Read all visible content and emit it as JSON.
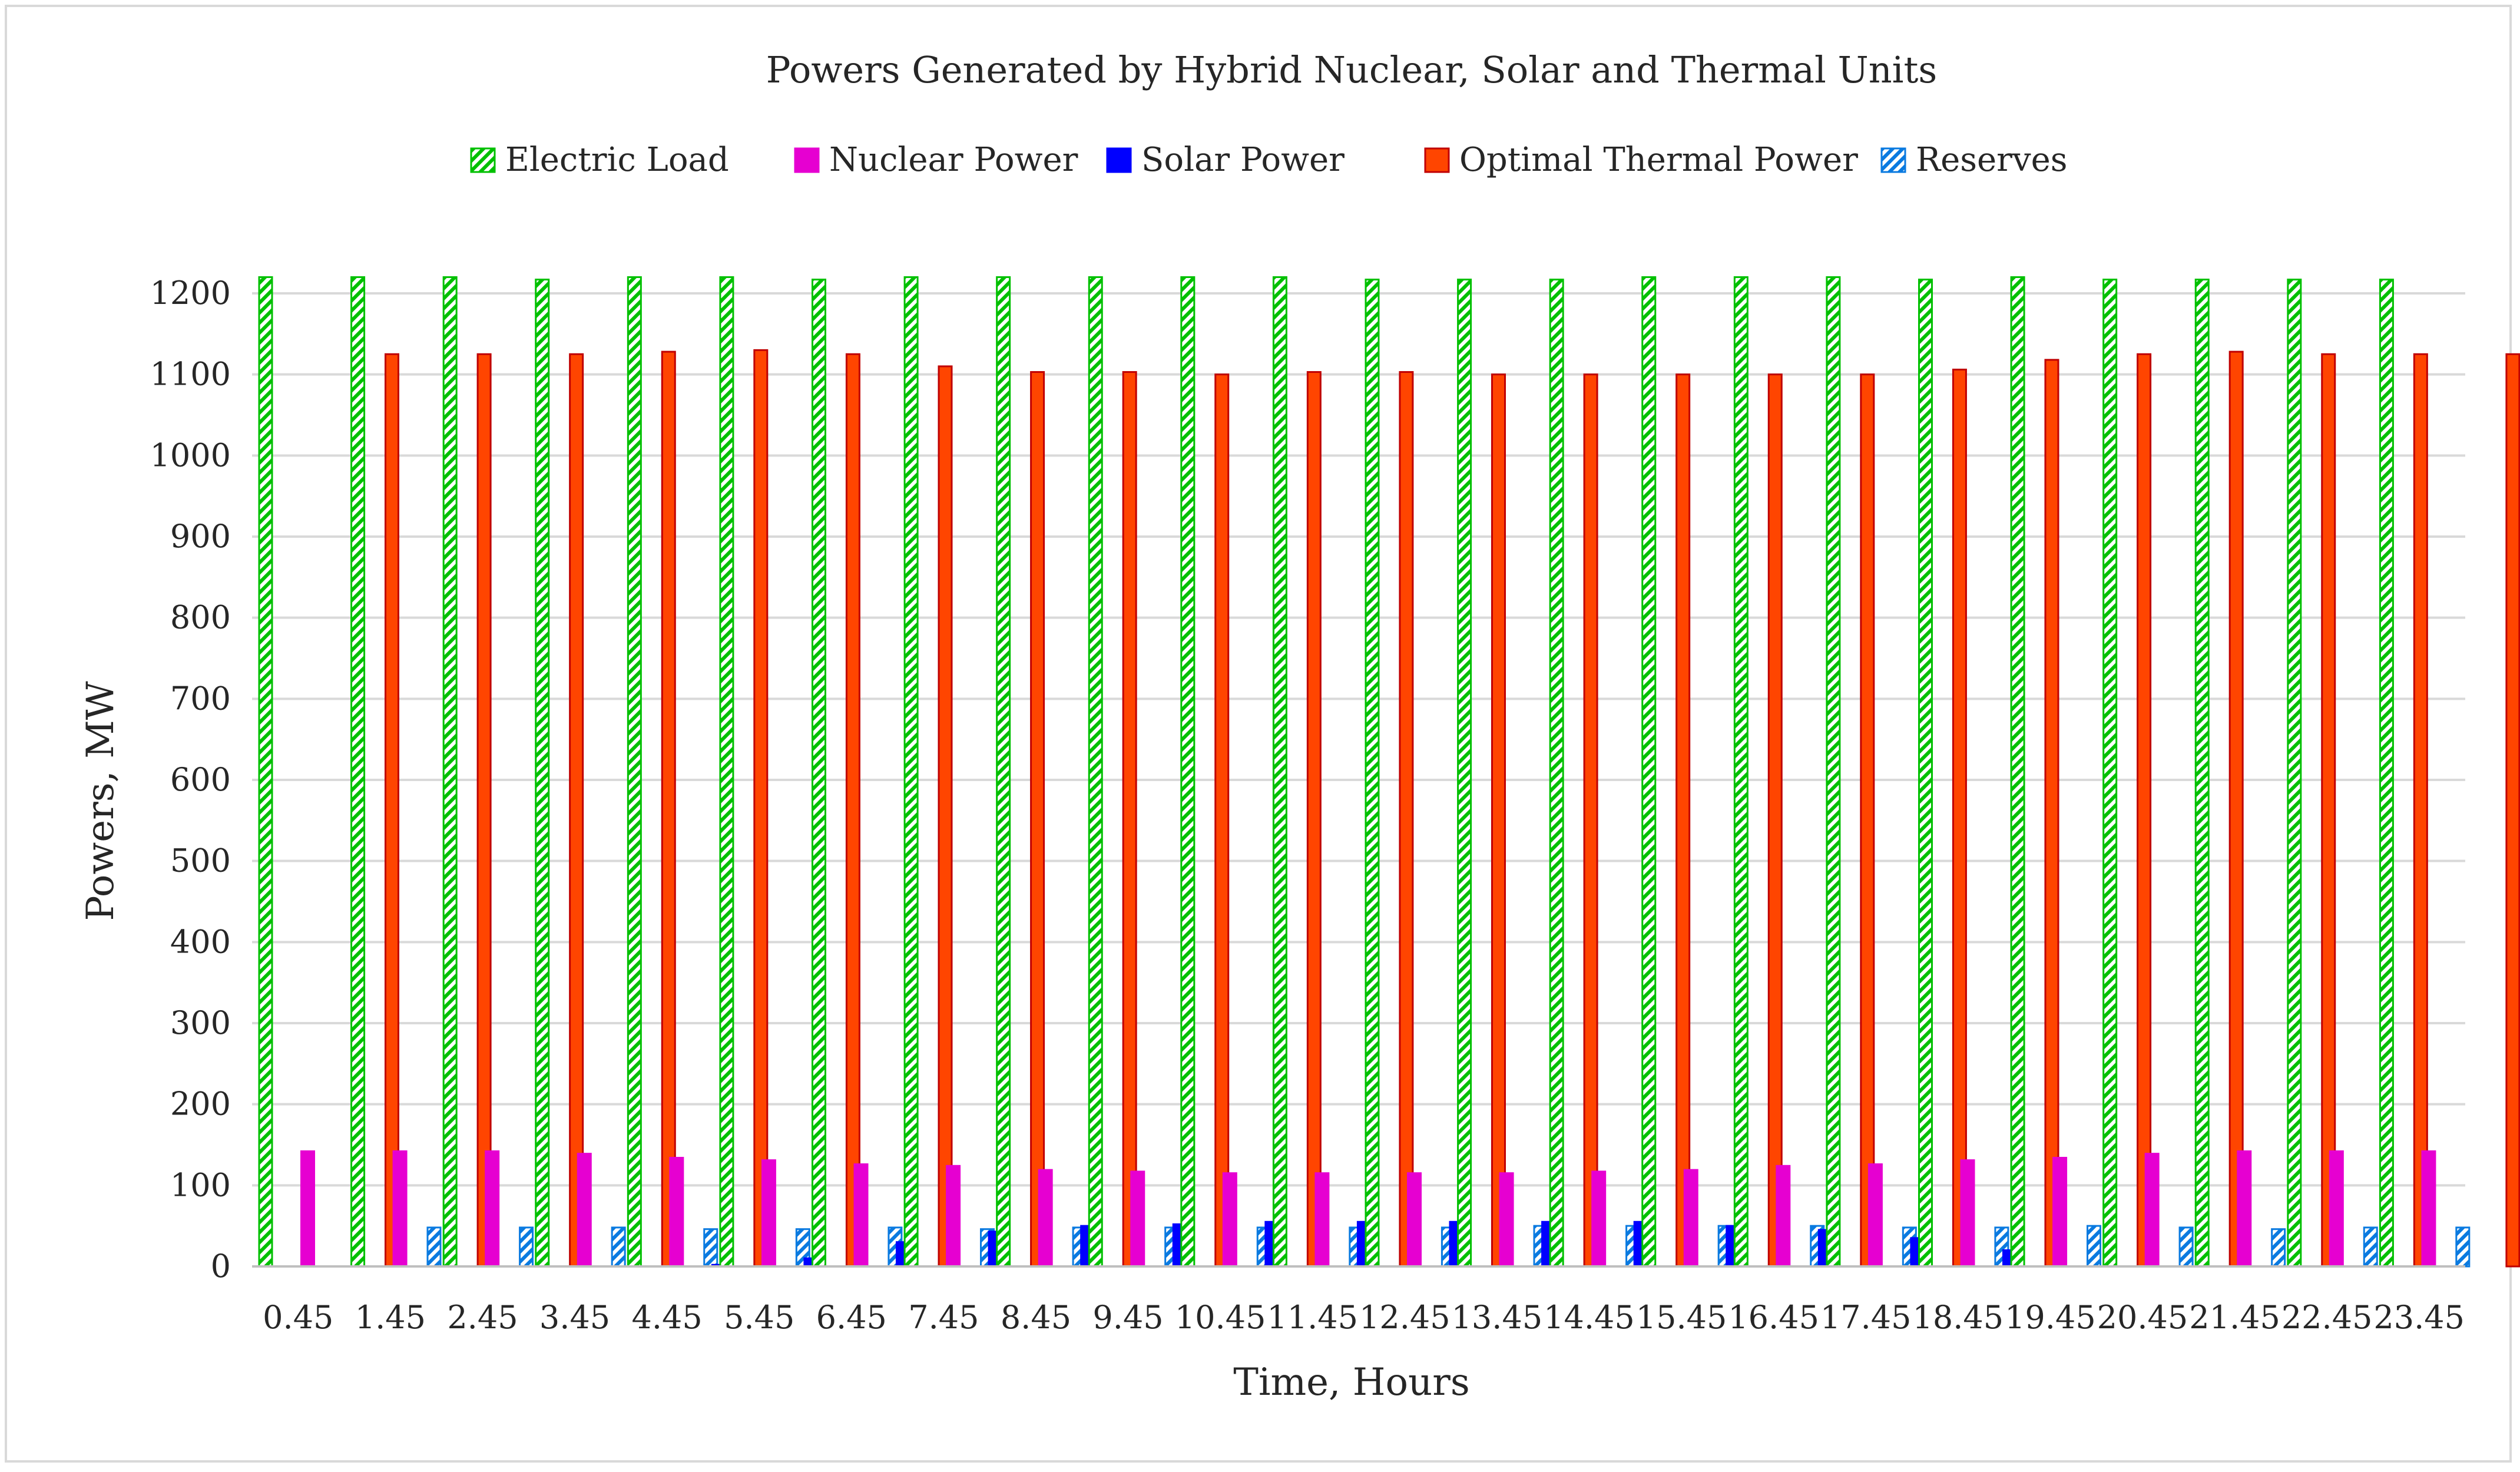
{
  "chart_data": {
    "type": "bar",
    "title": "Powers Generated by Hybrid Nuclear, Solar and Thermal Units",
    "xlabel": "Time, Hours",
    "ylabel": "Powers, MW",
    "ylim": [
      0,
      1200
    ],
    "yticks": [
      0,
      100,
      200,
      300,
      400,
      500,
      600,
      700,
      800,
      900,
      1000,
      1100,
      1200
    ],
    "grid": true,
    "legend_position": "top",
    "categories": [
      "0.45",
      "1.45",
      "2.45",
      "3.45",
      "4.45",
      "5.45",
      "6.45",
      "7.45",
      "8.45",
      "9.45",
      "10.45",
      "11.45",
      "12.45",
      "13.45",
      "14.45",
      "15.45",
      "16.45",
      "17.45",
      "18.45",
      "19.45",
      "20.45",
      "21.45",
      "22.45",
      "23.45"
    ],
    "series": [
      {
        "name": "Electric Load",
        "color": "#00b050",
        "pattern": "hatch-green",
        "values": [
          1220,
          1220,
          1220,
          1217,
          1220,
          1220,
          1217,
          1220,
          1220,
          1220,
          1220,
          1220,
          1217,
          1217,
          1217,
          1220,
          1220,
          1220,
          1217,
          1220,
          1217,
          1217,
          1217,
          1217
        ]
      },
      {
        "name": "Nuclear Power",
        "color": "#e600d1",
        "values": [
          142,
          142,
          142,
          139,
          134,
          131,
          126,
          124,
          119,
          117,
          115,
          115,
          115,
          115,
          117,
          119,
          124,
          126,
          131,
          134,
          139,
          142,
          142,
          142
        ]
      },
      {
        "name": "Solar Power",
        "color": "#0000ff",
        "values": [
          0,
          0,
          0,
          0,
          2,
          10,
          30,
          43,
          50,
          52,
          55,
          55,
          55,
          55,
          55,
          50,
          45,
          35,
          20,
          0,
          0,
          0,
          0,
          0
        ]
      },
      {
        "name": "Optimal Thermal Power",
        "color": "#ff4500",
        "values": [
          1125,
          1125,
          1125,
          1128,
          1130,
          1125,
          1110,
          1103,
          1103,
          1100,
          1103,
          1103,
          1100,
          1100,
          1100,
          1100,
          1100,
          1106,
          1118,
          1125,
          1128,
          1125,
          1125,
          1125
        ]
      },
      {
        "name": "Reserves",
        "color": "#0070c0",
        "pattern": "hatch-blue",
        "values": [
          48,
          48,
          48,
          46,
          46,
          48,
          46,
          48,
          48,
          48,
          48,
          48,
          50,
          50,
          50,
          50,
          48,
          48,
          50,
          48,
          46,
          48,
          48,
          48
        ]
      }
    ]
  }
}
